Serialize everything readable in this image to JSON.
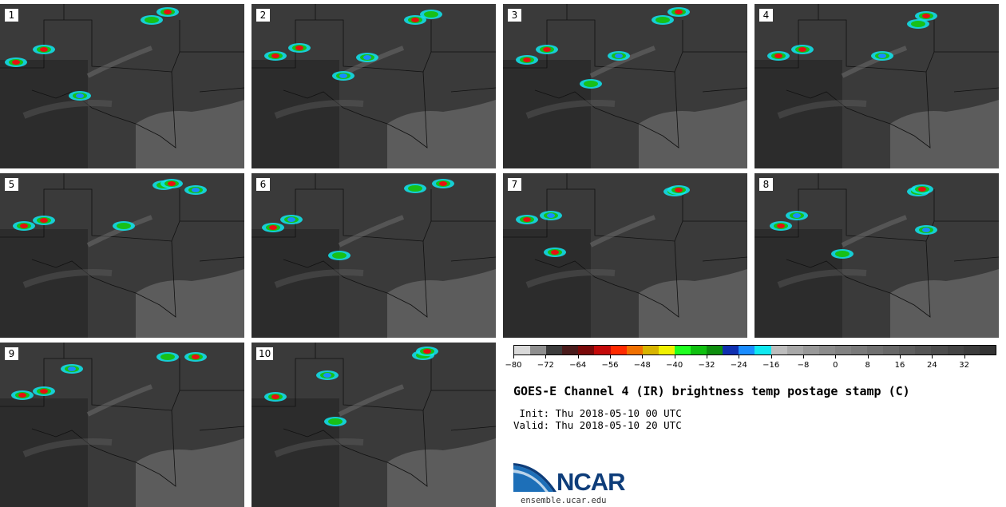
{
  "panels": [
    "1",
    "2",
    "3",
    "4",
    "5",
    "6",
    "7",
    "8",
    "9",
    "10"
  ],
  "colorbar": {
    "colors": [
      "#d9d9d9",
      "#8f8f8f",
      "#3c3c3c",
      "#4a1c1c",
      "#7a0a0a",
      "#c40a0a",
      "#ff2a00",
      "#f07000",
      "#d8b400",
      "#f0f000",
      "#20ff20",
      "#10c010",
      "#0e8e0e",
      "#1030b0",
      "#1a8cff",
      "#10e8f0",
      "#bdbdbd",
      "#a8a8a8",
      "#999999",
      "#8c8c8c",
      "#828282",
      "#7a7a7a",
      "#707070",
      "#686868",
      "#5e5e5e",
      "#555555",
      "#4c4c4c",
      "#444444",
      "#3c3c3c",
      "#333333"
    ],
    "min": -80,
    "max": 40,
    "tick_values": [
      -80,
      -72,
      -64,
      -56,
      -48,
      -40,
      -32,
      -24,
      -16,
      -8,
      0,
      8,
      16,
      24,
      32
    ],
    "tick_labels": [
      "−80",
      "−72",
      "−64",
      "−56",
      "−48",
      "−40",
      "−32",
      "−24",
      "−16",
      "−8",
      "0",
      "8",
      "16",
      "24",
      "32"
    ]
  },
  "title": "GOES-E Channel 4 (IR) brightness temp postage stamp (C)",
  "init": " Init: Thu 2018-05-10 00 UTC",
  "valid": "Valid: Thu 2018-05-10 20 UTC",
  "logo": {
    "text": "NCAR",
    "site": "ensemble.ucar.edu"
  },
  "storms": [
    [
      [
        20,
        78,
        "r"
      ],
      [
        55,
        62,
        "r"
      ],
      [
        190,
        25,
        "g"
      ],
      [
        210,
        15,
        "r"
      ],
      [
        100,
        120,
        "b"
      ]
    ],
    [
      [
        345,
        70,
        "r"
      ],
      [
        375,
        60,
        "r"
      ],
      [
        430,
        95,
        "b"
      ],
      [
        460,
        72,
        "b"
      ],
      [
        520,
        25,
        "r"
      ],
      [
        540,
        18,
        "g"
      ]
    ],
    [
      [
        660,
        75,
        "r"
      ],
      [
        685,
        62,
        "r"
      ],
      [
        740,
        105,
        "g"
      ],
      [
        830,
        25,
        "g"
      ],
      [
        850,
        15,
        "r"
      ],
      [
        775,
        70,
        "b"
      ]
    ],
    [
      [
        975,
        70,
        "r"
      ],
      [
        1005,
        62,
        "r"
      ],
      [
        1150,
        30,
        "g"
      ],
      [
        1160,
        20,
        "r"
      ],
      [
        1105,
        70,
        "b"
      ]
    ],
    [
      [
        30,
        283,
        "r"
      ],
      [
        55,
        276,
        "r"
      ],
      [
        155,
        283,
        "g"
      ],
      [
        205,
        232,
        "g"
      ],
      [
        215,
        230,
        "r"
      ],
      [
        245,
        238,
        "b"
      ]
    ],
    [
      [
        342,
        285,
        "r"
      ],
      [
        365,
        275,
        "b"
      ],
      [
        425,
        320,
        "g"
      ],
      [
        520,
        236,
        "g"
      ],
      [
        555,
        230,
        "r"
      ]
    ],
    [
      [
        660,
        275,
        "r"
      ],
      [
        690,
        270,
        "b"
      ],
      [
        845,
        240,
        "g"
      ],
      [
        850,
        238,
        "r"
      ],
      [
        695,
        316,
        "r"
      ]
    ],
    [
      [
        978,
        283,
        "r"
      ],
      [
        998,
        270,
        "b"
      ],
      [
        1150,
        240,
        "g"
      ],
      [
        1155,
        237,
        "r"
      ],
      [
        1055,
        318,
        "g"
      ],
      [
        1160,
        288,
        "b"
      ]
    ],
    [
      [
        28,
        495,
        "r"
      ],
      [
        55,
        490,
        "r"
      ],
      [
        210,
        447,
        "g"
      ],
      [
        245,
        447,
        "r"
      ],
      [
        90,
        462,
        "b"
      ]
    ],
    [
      [
        345,
        497,
        "r"
      ],
      [
        420,
        528,
        "g"
      ],
      [
        530,
        445,
        "g"
      ],
      [
        535,
        440,
        "r"
      ],
      [
        410,
        470,
        "b"
      ]
    ]
  ]
}
